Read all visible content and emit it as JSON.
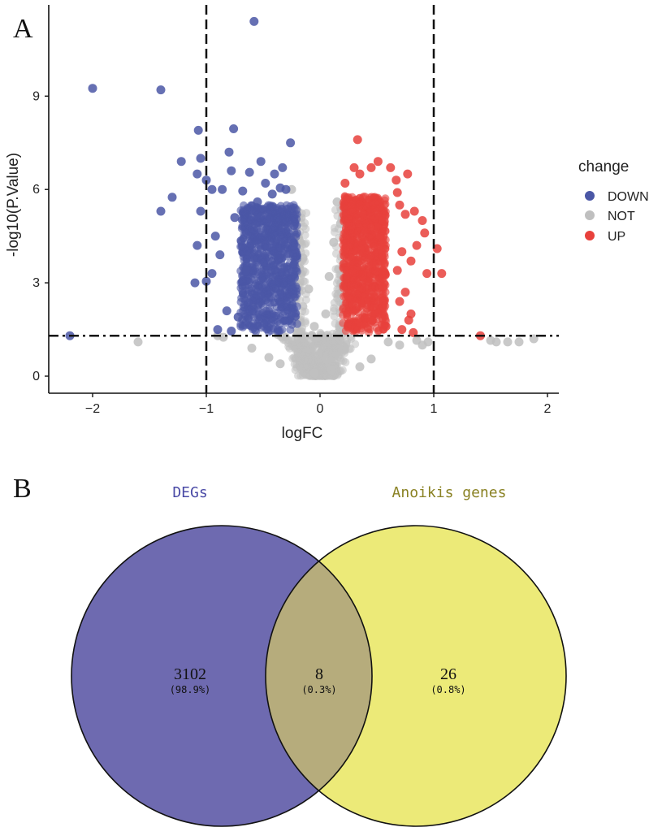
{
  "panels": {
    "a_letter": "A",
    "b_letter": "B"
  },
  "chart_data": [
    {
      "type": "scatter",
      "title": "",
      "xlabel": "logFC",
      "ylabel": "-log10(P.Value)",
      "xlim": [
        -2.4,
        2.1
      ],
      "ylim": [
        -0.6,
        11.9
      ],
      "xticks": [
        -2,
        -1,
        0,
        1,
        2
      ],
      "xtick_labels": [
        "−2",
        "−1",
        "0",
        "1",
        "2"
      ],
      "yticks": [
        0,
        3,
        6,
        9
      ],
      "ytick_labels": [
        "0",
        "3",
        "6",
        "9"
      ],
      "thresholds": {
        "logFC": [
          -1,
          1
        ],
        "neg_log10_p": 1.3
      },
      "grid": false,
      "legend": {
        "title": "change",
        "placement": "right",
        "entries": [
          {
            "label": "DOWN",
            "color": "#4b57a6"
          },
          {
            "label": "NOT",
            "color": "#bfbfbf"
          },
          {
            "label": "UP",
            "color": "#e8413c"
          }
        ]
      },
      "series": [
        {
          "name": "DOWN",
          "color": "#4b57a6",
          "points": [
            [
              -0.58,
              11.4
            ],
            [
              -2.0,
              9.25
            ],
            [
              -1.4,
              9.2
            ],
            [
              -0.76,
              7.95
            ],
            [
              -1.07,
              7.9
            ],
            [
              -0.26,
              7.5
            ],
            [
              -1.05,
              7.0
            ],
            [
              -0.8,
              7.2
            ],
            [
              -0.52,
              6.9
            ],
            [
              -1.22,
              6.9
            ],
            [
              -0.33,
              6.7
            ],
            [
              -1.08,
              6.5
            ],
            [
              -0.62,
              6.55
            ],
            [
              -0.78,
              6.6
            ],
            [
              -1.0,
              6.3
            ],
            [
              -0.4,
              6.5
            ],
            [
              -0.86,
              6.0
            ],
            [
              -0.95,
              6.0
            ],
            [
              -1.3,
              5.75
            ],
            [
              -0.35,
              6.05
            ],
            [
              -0.68,
              5.95
            ],
            [
              -1.05,
              5.3
            ],
            [
              -1.4,
              5.3
            ],
            [
              -0.42,
              5.85
            ],
            [
              -0.55,
              5.6
            ],
            [
              -1.08,
              4.2
            ],
            [
              -1.0,
              3.05
            ],
            [
              -1.1,
              3.0
            ],
            [
              -0.92,
              4.5
            ],
            [
              -0.95,
              3.3
            ],
            [
              -0.82,
              2.1
            ],
            [
              -0.78,
              1.45
            ],
            [
              -0.9,
              1.5
            ],
            [
              -0.72,
              1.9
            ],
            [
              -2.2,
              1.3
            ],
            [
              -0.65,
              3.4
            ],
            [
              -0.88,
              3.9
            ],
            [
              -0.75,
              5.1
            ],
            [
              -0.48,
              6.2
            ],
            [
              -0.3,
              6.0
            ]
          ],
          "dense_band": {
            "x": [
              -0.7,
              -0.2
            ],
            "y": [
              1.4,
              5.5
            ]
          }
        },
        {
          "name": "UP",
          "color": "#e8413c",
          "points": [
            [
              0.33,
              7.6
            ],
            [
              0.22,
              6.2
            ],
            [
              0.3,
              6.7
            ],
            [
              0.35,
              6.5
            ],
            [
              0.45,
              6.7
            ],
            [
              0.51,
              6.9
            ],
            [
              0.62,
              6.7
            ],
            [
              0.67,
              6.3
            ],
            [
              0.77,
              6.5
            ],
            [
              0.68,
              5.9
            ],
            [
              0.7,
              5.5
            ],
            [
              0.75,
              5.2
            ],
            [
              0.83,
              5.3
            ],
            [
              0.9,
              5.0
            ],
            [
              0.92,
              4.6
            ],
            [
              1.03,
              4.1
            ],
            [
              0.85,
              4.2
            ],
            [
              0.72,
              4.0
            ],
            [
              0.8,
              3.7
            ],
            [
              0.94,
              3.3
            ],
            [
              1.07,
              3.3
            ],
            [
              0.68,
              3.4
            ],
            [
              0.75,
              2.7
            ],
            [
              0.7,
              2.4
            ],
            [
              0.8,
              2.0
            ],
            [
              0.78,
              1.8
            ],
            [
              0.72,
              1.5
            ],
            [
              0.82,
              1.4
            ],
            [
              1.41,
              1.3
            ],
            [
              0.58,
              1.6
            ]
          ],
          "dense_band": {
            "x": [
              0.2,
              0.58
            ],
            "y": [
              1.4,
              5.8
            ]
          }
        },
        {
          "name": "NOT",
          "color": "#bfbfbf",
          "points": [
            [
              -1.6,
              1.1
            ],
            [
              -0.9,
              1.3
            ],
            [
              -0.85,
              1.25
            ],
            [
              1.5,
              1.15
            ],
            [
              1.55,
              1.1
            ],
            [
              1.65,
              1.1
            ],
            [
              1.75,
              1.1
            ],
            [
              1.88,
              1.2
            ],
            [
              0.6,
              1.1
            ],
            [
              0.7,
              1.0
            ],
            [
              0.85,
              1.15
            ],
            [
              0.9,
              1.0
            ],
            [
              0.95,
              1.1
            ],
            [
              -0.6,
              0.9
            ],
            [
              -0.45,
              0.6
            ],
            [
              0.45,
              0.55
            ],
            [
              0.35,
              0.3
            ],
            [
              -0.35,
              0.4
            ],
            [
              -0.05,
              0.1
            ],
            [
              0.1,
              0.2
            ],
            [
              -0.25,
              6.0
            ],
            [
              0.15,
              5.6
            ],
            [
              0.18,
              4.9
            ],
            [
              -0.2,
              4.5
            ],
            [
              -0.15,
              3.8
            ],
            [
              0.12,
              4.3
            ],
            [
              0.08,
              3.2
            ],
            [
              -0.1,
              2.8
            ],
            [
              0.05,
              2.0
            ],
            [
              -0.05,
              1.6
            ]
          ],
          "dense_band": {
            "x": [
              -0.3,
              0.5
            ],
            "y": [
              0.0,
              1.4
            ]
          }
        }
      ]
    },
    {
      "type": "venn",
      "sets": [
        {
          "name": "DEGs",
          "color": "#6e6ab0",
          "label_color": "#4a4aa6"
        },
        {
          "name": "Anoikis genes",
          "color": "#ecea78",
          "label_color": "#8a8224"
        }
      ],
      "intersection_color": "#b6ac7c",
      "regions": [
        {
          "region": "DEGs only",
          "count": "3102",
          "percent": "(98.9%)"
        },
        {
          "region": "DEGs ∩ Anoikis genes",
          "count": "8",
          "percent": "(0.3%)"
        },
        {
          "region": "Anoikis genes only",
          "count": "26",
          "percent": "(0.8%)"
        }
      ]
    }
  ]
}
